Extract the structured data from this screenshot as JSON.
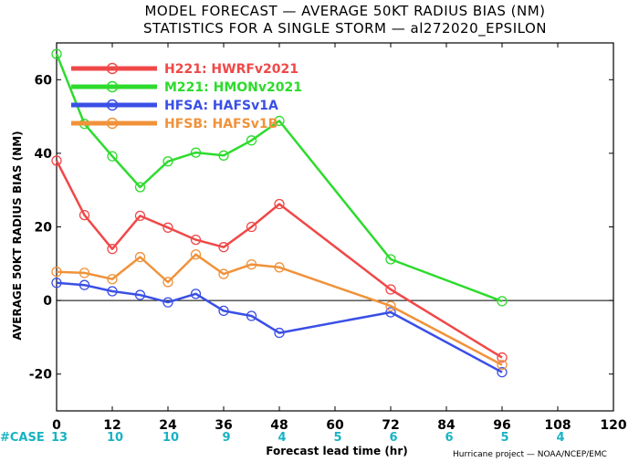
{
  "title_line1": "MODEL FORECAST — AVERAGE 50KT RADIUS BIAS (NM)",
  "title_line2": "STATISTICS FOR A SINGLE STORM — al272020_EPSILON",
  "credit": "Hurricane project — NOAA/NCEP/EMC",
  "case_label": "#CASE",
  "colors": {
    "H221": "#f04848",
    "M221": "#2ddb2d",
    "HFSA": "#3a4fe6",
    "HFSB": "#f0923a",
    "case_text": "#18b3c4"
  },
  "chart_data": {
    "type": "line",
    "xlabel": "Forecast lead time (hr)",
    "ylabel": "AVERAGE 50KT RADIUS BIAS (NM)",
    "xlim": [
      0,
      120
    ],
    "ylim": [
      -30,
      70
    ],
    "x_ticks": [
      0,
      12,
      24,
      36,
      48,
      60,
      72,
      84,
      96,
      108,
      120
    ],
    "y_ticks": [
      -20,
      0,
      20,
      40,
      60
    ],
    "zero_line": true,
    "legend_position": "top-left",
    "series": [
      {
        "key": "H221",
        "name": "H221: HWRFv2021",
        "color": "#f04848",
        "x": [
          0,
          6,
          12,
          18,
          24,
          30,
          36,
          42,
          48,
          72,
          96
        ],
        "y": [
          38,
          23.2,
          14,
          23,
          19.8,
          16.5,
          14.5,
          20,
          26.2,
          3,
          -15.5
        ]
      },
      {
        "key": "M221",
        "name": "M221: HMONv2021",
        "color": "#2ddb2d",
        "x": [
          0,
          6,
          12,
          18,
          24,
          30,
          36,
          42,
          48,
          72,
          96
        ],
        "y": [
          67,
          48,
          39.2,
          30.8,
          37.8,
          40.2,
          39.4,
          43.5,
          48.8,
          11.2,
          -0.2
        ]
      },
      {
        "key": "HFSA",
        "name": "HFSA: HAFSv1A",
        "color": "#3a4fe6",
        "x": [
          0,
          6,
          12,
          18,
          24,
          30,
          36,
          42,
          48,
          72,
          96
        ],
        "y": [
          4.8,
          4.2,
          2.5,
          1.5,
          -0.5,
          1.8,
          -2.8,
          -4.2,
          -8.8,
          -3.2,
          -19.5
        ]
      },
      {
        "key": "HFSB",
        "name": "HFSB: HAFSv1B",
        "color": "#f0923a",
        "x": [
          0,
          6,
          12,
          18,
          24,
          30,
          36,
          42,
          48,
          72,
          96
        ],
        "y": [
          7.8,
          7.5,
          5.8,
          11.8,
          5,
          12.5,
          7.2,
          9.8,
          9,
          -1.5,
          -17.5
        ]
      }
    ],
    "case_counts": [
      {
        "x": 0,
        "n": "13"
      },
      {
        "x": 12,
        "n": "10"
      },
      {
        "x": 24,
        "n": "10"
      },
      {
        "x": 36,
        "n": "9"
      },
      {
        "x": 48,
        "n": "4"
      },
      {
        "x": 60,
        "n": "5"
      },
      {
        "x": 72,
        "n": "6"
      },
      {
        "x": 84,
        "n": "6"
      },
      {
        "x": 96,
        "n": "5"
      },
      {
        "x": 108,
        "n": "4"
      }
    ]
  }
}
